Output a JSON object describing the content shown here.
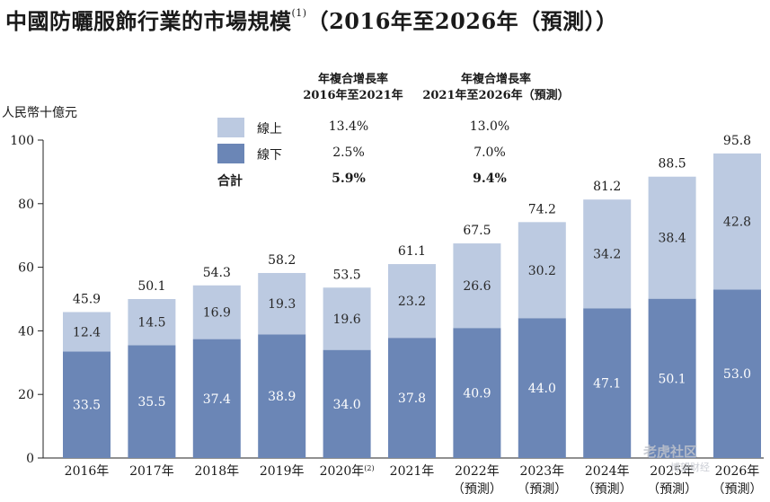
{
  "chart_data": {
    "type": "bar",
    "stacked": true,
    "title": "中國防曬服飾行業的市場規模",
    "title_note": "(1)",
    "title_suffix": "（2016年至2026年（預測））",
    "ylabel": "人民幣十億元",
    "ylim": [
      0,
      100
    ],
    "yticks": [
      0,
      20,
      40,
      60,
      80,
      100
    ],
    "categories": [
      {
        "year": "2016年",
        "note": "",
        "forecast": ""
      },
      {
        "year": "2017年",
        "note": "",
        "forecast": ""
      },
      {
        "year": "2018年",
        "note": "",
        "forecast": ""
      },
      {
        "year": "2019年",
        "note": "",
        "forecast": ""
      },
      {
        "year": "2020年",
        "note": "(2)",
        "forecast": ""
      },
      {
        "year": "2021年",
        "note": "",
        "forecast": ""
      },
      {
        "year": "2022年",
        "note": "",
        "forecast": "（預測）"
      },
      {
        "year": "2023年",
        "note": "",
        "forecast": "（預測）"
      },
      {
        "year": "2024年",
        "note": "",
        "forecast": "（預測）"
      },
      {
        "year": "2025年",
        "note": "",
        "forecast": "（預測）"
      },
      {
        "year": "2026年",
        "note": "",
        "forecast": "（預測）"
      }
    ],
    "series": [
      {
        "name": "線下",
        "color": "#6b86b6",
        "label_color": "#ffffff",
        "values": [
          33.5,
          35.5,
          37.4,
          38.9,
          34.0,
          37.8,
          40.9,
          44.0,
          47.1,
          50.1,
          53.0
        ]
      },
      {
        "name": "線上",
        "color": "#bccae1",
        "label_color": "#2a2a2a",
        "values": [
          12.4,
          14.5,
          16.9,
          19.3,
          19.6,
          23.2,
          26.6,
          30.2,
          34.2,
          38.4,
          42.8
        ]
      }
    ],
    "totals": [
      45.9,
      50.1,
      54.3,
      58.2,
      53.5,
      61.1,
      67.5,
      74.2,
      81.2,
      88.5,
      95.8
    ]
  },
  "cagr_table": {
    "header1_line1": "年複合增長率",
    "header1_line2": "2016年至2021年",
    "header2_line1": "年複合增長率",
    "header2_line2": "2021年至2026年（預測）",
    "rows": [
      {
        "label": "線上",
        "swatch": "#bccae1",
        "v1": "13.4%",
        "v2": "13.0%",
        "bold": false
      },
      {
        "label": "線下",
        "swatch": "#6b86b6",
        "v1": "2.5%",
        "v2": "7.0%",
        "bold": false
      },
      {
        "label": "合計",
        "swatch": "",
        "v1": "5.9%",
        "v2": "9.4%",
        "bold": true
      }
    ]
  },
  "watermark": {
    "line1": "老虎社区",
    "line2": "博望财经"
  }
}
